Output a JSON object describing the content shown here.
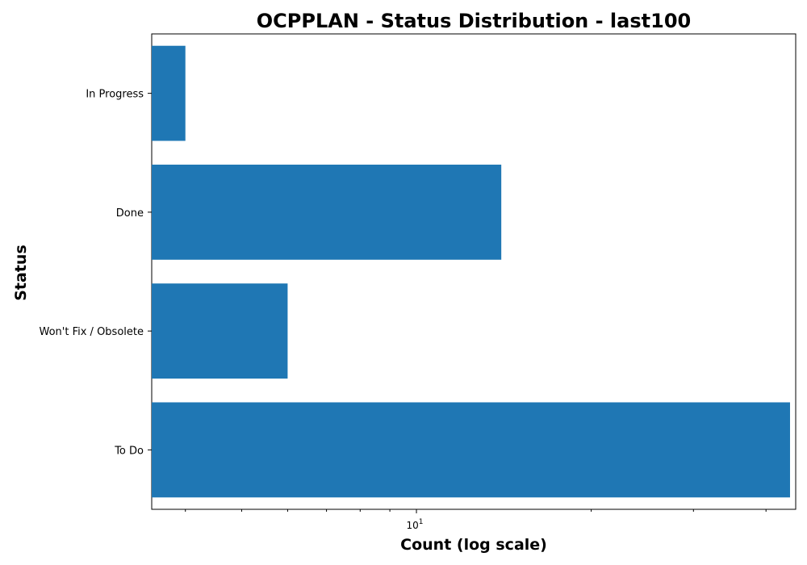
{
  "chart_data": {
    "type": "bar",
    "orientation": "horizontal",
    "title": "OCPPLAN - Status Distribution - last100",
    "xlabel": "Count (log scale)",
    "ylabel": "Status",
    "x_scale": "log",
    "xlim": [
      3.5,
      45
    ],
    "categories": [
      "To Do",
      "Won't Fix / Obsolete",
      "Done",
      "In Progress"
    ],
    "values": [
      44,
      6,
      14,
      4
    ],
    "x_major_ticks": [
      {
        "value": 10,
        "base": "10",
        "exp": "1"
      }
    ],
    "x_minor_ticks": [
      4,
      5,
      6,
      7,
      8,
      9,
      20,
      30,
      40
    ],
    "bar_color": "#1f77b4",
    "grid": false,
    "legend": "none"
  }
}
